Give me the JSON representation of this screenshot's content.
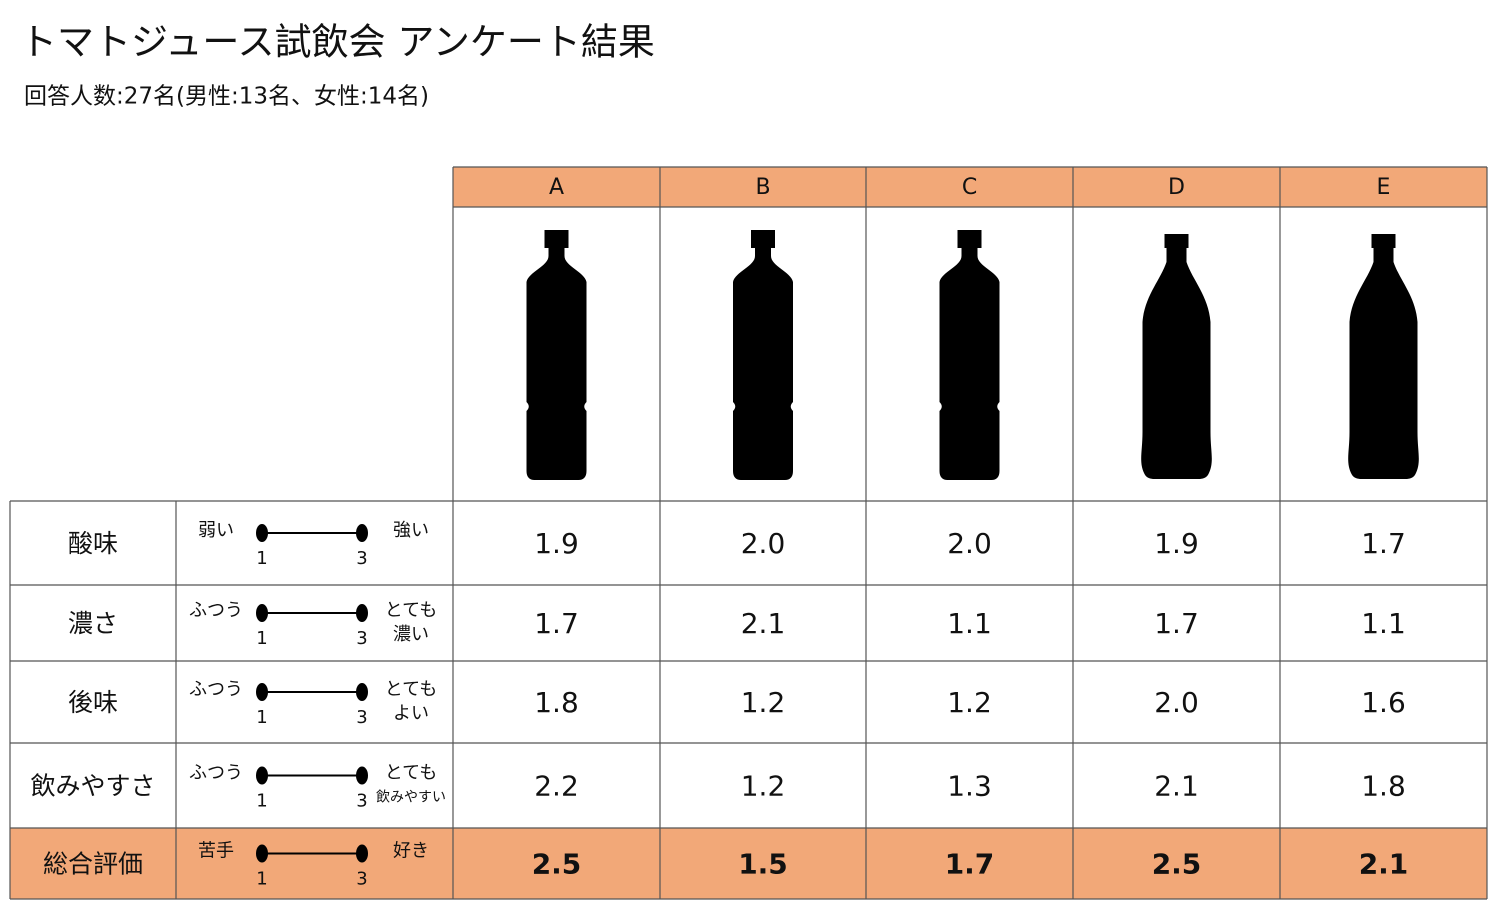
{
  "header": {
    "title": "トマトジュース試飲会 アンケート結果",
    "subtitle": "回答人数:27名(男性:13名、女性:14名)"
  },
  "table": {
    "columns": [
      "A",
      "B",
      "C",
      "D",
      "E"
    ],
    "rows": [
      {
        "label": "酸味",
        "scale": {
          "left": [
            "弱い"
          ],
          "right": [
            "強い"
          ],
          "min": "1",
          "max": "3"
        },
        "values": [
          "1.9",
          "2.0",
          "2.0",
          "1.9",
          "1.7"
        ]
      },
      {
        "label": "濃さ",
        "scale": {
          "left": [
            "ふつう"
          ],
          "right": [
            "とても",
            "濃い"
          ],
          "min": "1",
          "max": "3"
        },
        "values": [
          "1.7",
          "2.1",
          "1.1",
          "1.7",
          "1.1"
        ]
      },
      {
        "label": "後味",
        "scale": {
          "left": [
            "ふつう"
          ],
          "right": [
            "とても",
            "よい"
          ],
          "min": "1",
          "max": "3"
        },
        "values": [
          "1.8",
          "1.2",
          "1.2",
          "2.0",
          "1.6"
        ]
      },
      {
        "label": "飲みやすさ",
        "scale": {
          "left": [
            "ふつう"
          ],
          "right": [
            "とても",
            "飲みやすい"
          ],
          "min": "1",
          "max": "3"
        },
        "values": [
          "2.2",
          "1.2",
          "1.3",
          "2.1",
          "1.8"
        ]
      },
      {
        "label": "総合評価",
        "scale": {
          "left": [
            "苦手"
          ],
          "right": [
            "好き"
          ],
          "min": "1",
          "max": "3"
        },
        "values": [
          "2.5",
          "1.5",
          "1.7",
          "2.5",
          "2.1"
        ]
      }
    ]
  }
}
